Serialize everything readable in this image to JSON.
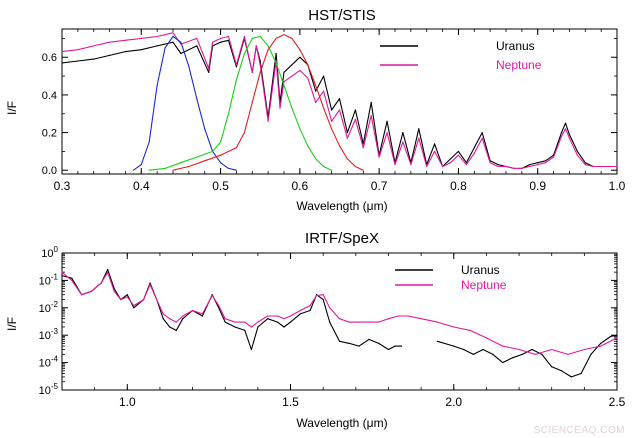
{
  "watermark": "SCIENCEAQ.COM",
  "chart_data": [
    {
      "type": "line",
      "title": "HST/STIS",
      "xlabel": "Wavelength (μm)",
      "ylabel": "I/F",
      "xlim": [
        0.3,
        1.0
      ],
      "ylim": [
        -0.02,
        0.75
      ],
      "xticks": [
        "0.3",
        "0.4",
        "0.5",
        "0.6",
        "0.7",
        "0.8",
        "0.9",
        "1.0"
      ],
      "yticks": [
        "0.0",
        "0.2",
        "0.4",
        "0.6"
      ],
      "grid": false,
      "legend_position": "top-right",
      "series": [
        {
          "name": "Uranus",
          "color": "#000000",
          "x": [
            0.3,
            0.32,
            0.34,
            0.36,
            0.38,
            0.4,
            0.42,
            0.44,
            0.45,
            0.47,
            0.485,
            0.49,
            0.5,
            0.51,
            0.52,
            0.53,
            0.54,
            0.545,
            0.55,
            0.56,
            0.57,
            0.575,
            0.58,
            0.59,
            0.6,
            0.61,
            0.62,
            0.63,
            0.64,
            0.65,
            0.66,
            0.67,
            0.68,
            0.69,
            0.7,
            0.71,
            0.72,
            0.73,
            0.74,
            0.75,
            0.76,
            0.77,
            0.78,
            0.79,
            0.8,
            0.81,
            0.82,
            0.83,
            0.84,
            0.85,
            0.86,
            0.87,
            0.88,
            0.89,
            0.9,
            0.91,
            0.92,
            0.93,
            0.935,
            0.94,
            0.95,
            0.96,
            0.97,
            0.98,
            0.99,
            1.0
          ],
          "y": [
            0.57,
            0.58,
            0.59,
            0.61,
            0.63,
            0.64,
            0.66,
            0.68,
            0.62,
            0.66,
            0.52,
            0.66,
            0.68,
            0.69,
            0.55,
            0.7,
            0.52,
            0.66,
            0.58,
            0.28,
            0.62,
            0.36,
            0.52,
            0.56,
            0.6,
            0.56,
            0.42,
            0.5,
            0.32,
            0.38,
            0.2,
            0.32,
            0.14,
            0.36,
            0.08,
            0.26,
            0.04,
            0.2,
            0.04,
            0.22,
            0.03,
            0.14,
            0.02,
            0.06,
            0.1,
            0.04,
            0.12,
            0.2,
            0.05,
            0.03,
            0.02,
            0.01,
            0.01,
            0.03,
            0.04,
            0.05,
            0.08,
            0.2,
            0.25,
            0.19,
            0.1,
            0.04,
            0.02,
            0.02,
            0.02,
            0.02
          ]
        },
        {
          "name": "Neptune",
          "color": "#e0189e",
          "x": [
            0.3,
            0.32,
            0.34,
            0.36,
            0.38,
            0.4,
            0.42,
            0.44,
            0.45,
            0.47,
            0.485,
            0.49,
            0.5,
            0.51,
            0.52,
            0.53,
            0.54,
            0.545,
            0.55,
            0.56,
            0.57,
            0.575,
            0.58,
            0.59,
            0.6,
            0.61,
            0.62,
            0.63,
            0.64,
            0.65,
            0.66,
            0.67,
            0.68,
            0.69,
            0.7,
            0.71,
            0.72,
            0.73,
            0.74,
            0.75,
            0.76,
            0.77,
            0.78,
            0.79,
            0.8,
            0.81,
            0.82,
            0.83,
            0.84,
            0.85,
            0.86,
            0.87,
            0.88,
            0.89,
            0.9,
            0.91,
            0.92,
            0.93,
            0.935,
            0.94,
            0.95,
            0.96,
            0.97,
            0.98,
            0.99,
            1.0
          ],
          "y": [
            0.63,
            0.64,
            0.66,
            0.68,
            0.69,
            0.7,
            0.71,
            0.73,
            0.67,
            0.7,
            0.54,
            0.68,
            0.7,
            0.71,
            0.56,
            0.71,
            0.52,
            0.66,
            0.56,
            0.26,
            0.58,
            0.33,
            0.47,
            0.5,
            0.53,
            0.49,
            0.36,
            0.42,
            0.26,
            0.32,
            0.17,
            0.27,
            0.12,
            0.29,
            0.07,
            0.2,
            0.03,
            0.15,
            0.03,
            0.17,
            0.02,
            0.1,
            0.02,
            0.04,
            0.08,
            0.03,
            0.09,
            0.17,
            0.04,
            0.02,
            0.02,
            0.01,
            0.01,
            0.02,
            0.03,
            0.04,
            0.07,
            0.18,
            0.22,
            0.17,
            0.08,
            0.03,
            0.02,
            0.02,
            0.02,
            0.02
          ]
        },
        {
          "color": "#1a2ccc",
          "x": [
            0.39,
            0.4,
            0.41,
            0.42,
            0.43,
            0.44,
            0.45,
            0.46,
            0.47,
            0.48,
            0.49,
            0.5,
            0.51,
            0.52
          ],
          "y": [
            0.0,
            0.03,
            0.15,
            0.45,
            0.65,
            0.71,
            0.68,
            0.55,
            0.38,
            0.22,
            0.1,
            0.04,
            0.01,
            0.0
          ]
        },
        {
          "color": "#18d018",
          "x": [
            0.41,
            0.43,
            0.45,
            0.47,
            0.49,
            0.5,
            0.51,
            0.52,
            0.53,
            0.54,
            0.55,
            0.56,
            0.57,
            0.58,
            0.59,
            0.6,
            0.61,
            0.62,
            0.63,
            0.64
          ],
          "y": [
            0.0,
            0.01,
            0.04,
            0.07,
            0.1,
            0.15,
            0.3,
            0.48,
            0.62,
            0.7,
            0.71,
            0.66,
            0.57,
            0.45,
            0.33,
            0.22,
            0.13,
            0.06,
            0.02,
            0.0
          ]
        },
        {
          "color": "#e02020",
          "x": [
            0.44,
            0.46,
            0.48,
            0.5,
            0.52,
            0.53,
            0.54,
            0.55,
            0.56,
            0.57,
            0.58,
            0.59,
            0.6,
            0.61,
            0.62,
            0.63,
            0.64,
            0.65,
            0.66,
            0.67,
            0.68
          ],
          "y": [
            0.0,
            0.02,
            0.05,
            0.08,
            0.12,
            0.2,
            0.36,
            0.52,
            0.64,
            0.7,
            0.72,
            0.7,
            0.64,
            0.56,
            0.45,
            0.33,
            0.22,
            0.13,
            0.06,
            0.02,
            0.0
          ]
        }
      ]
    },
    {
      "type": "line",
      "title": "IRTF/SpeX",
      "xlabel": "Wavelength (μm)",
      "ylabel": "I/F",
      "xlim": [
        0.8,
        2.5
      ],
      "ylim": [
        1e-05,
        1
      ],
      "yscale": "log",
      "xticks": [
        "1.0",
        "1.5",
        "2.0",
        "2.5"
      ],
      "yticks": [
        {
          "base": "10",
          "exp": "0"
        },
        {
          "base": "10",
          "exp": "-1"
        },
        {
          "base": "10",
          "exp": "-2"
        },
        {
          "base": "10",
          "exp": "-3"
        },
        {
          "base": "10",
          "exp": "-4"
        },
        {
          "base": "10",
          "exp": "-5"
        }
      ],
      "grid": false,
      "legend_position": "top-right",
      "series": [
        {
          "name": "Uranus",
          "color": "#000000",
          "x": [
            0.8,
            0.83,
            0.86,
            0.89,
            0.92,
            0.94,
            0.96,
            0.98,
            1.0,
            1.02,
            1.05,
            1.07,
            1.09,
            1.11,
            1.13,
            1.15,
            1.17,
            1.2,
            1.23,
            1.26,
            1.28,
            1.3,
            1.33,
            1.36,
            1.38,
            1.4,
            1.43,
            1.46,
            1.48,
            1.5,
            1.53,
            1.56,
            1.58,
            1.6,
            1.62,
            1.65,
            1.68,
            1.71,
            1.74,
            1.77,
            1.8,
            1.82,
            1.84
          ],
          "y": [
            0.15,
            0.12,
            0.03,
            0.04,
            0.08,
            0.25,
            0.05,
            0.02,
            0.03,
            0.01,
            0.02,
            0.08,
            0.02,
            0.004,
            0.002,
            0.0015,
            0.004,
            0.008,
            0.005,
            0.03,
            0.01,
            0.003,
            0.002,
            0.0015,
            0.0003,
            0.002,
            0.004,
            0.003,
            0.002,
            0.003,
            0.006,
            0.008,
            0.03,
            0.02,
            0.003,
            0.0006,
            0.0005,
            0.0004,
            0.0007,
            0.0005,
            0.0003,
            0.0004,
            0.0004
          ]
        },
        {
          "color": "#000000",
          "x": [
            1.95,
            2.0,
            2.03,
            2.06,
            2.09,
            2.12,
            2.15,
            2.18,
            2.21,
            2.24,
            2.27,
            2.3,
            2.33,
            2.36,
            2.39,
            2.42,
            2.45,
            2.48,
            2.5
          ],
          "y": [
            0.0006,
            0.0004,
            0.0003,
            0.0002,
            0.0003,
            0.0002,
            0.0001,
            0.00015,
            0.0002,
            0.0003,
            0.0002,
            7e-05,
            5e-05,
            3e-05,
            4e-05,
            0.0002,
            0.0005,
            0.0009,
            0.001
          ]
        },
        {
          "name": "Neptune",
          "color": "#e0189e",
          "x": [
            0.8,
            0.83,
            0.86,
            0.89,
            0.92,
            0.94,
            0.96,
            0.98,
            1.0,
            1.02,
            1.05,
            1.07,
            1.09,
            1.11,
            1.13,
            1.15,
            1.17,
            1.2,
            1.23,
            1.26,
            1.28,
            1.3,
            1.33,
            1.36,
            1.38,
            1.4,
            1.43,
            1.46,
            1.48,
            1.5,
            1.53,
            1.56,
            1.58,
            1.6,
            1.62,
            1.65,
            1.68,
            1.71,
            1.74,
            1.77,
            1.8,
            1.83,
            1.86,
            1.9,
            1.95,
            2.0,
            2.05,
            2.1,
            2.15,
            2.2,
            2.25,
            2.3,
            2.35,
            2.4,
            2.45,
            2.5
          ],
          "y": [
            0.2,
            0.1,
            0.03,
            0.04,
            0.08,
            0.2,
            0.04,
            0.02,
            0.025,
            0.012,
            0.02,
            0.07,
            0.02,
            0.006,
            0.004,
            0.003,
            0.005,
            0.008,
            0.006,
            0.028,
            0.012,
            0.004,
            0.003,
            0.003,
            0.002,
            0.003,
            0.005,
            0.005,
            0.004,
            0.005,
            0.008,
            0.012,
            0.028,
            0.03,
            0.01,
            0.004,
            0.003,
            0.003,
            0.003,
            0.003,
            0.004,
            0.005,
            0.005,
            0.004,
            0.003,
            0.002,
            0.0015,
            0.0008,
            0.0004,
            0.0003,
            0.0002,
            0.0003,
            0.0002,
            0.0003,
            0.0004,
            0.0008
          ]
        }
      ]
    }
  ]
}
